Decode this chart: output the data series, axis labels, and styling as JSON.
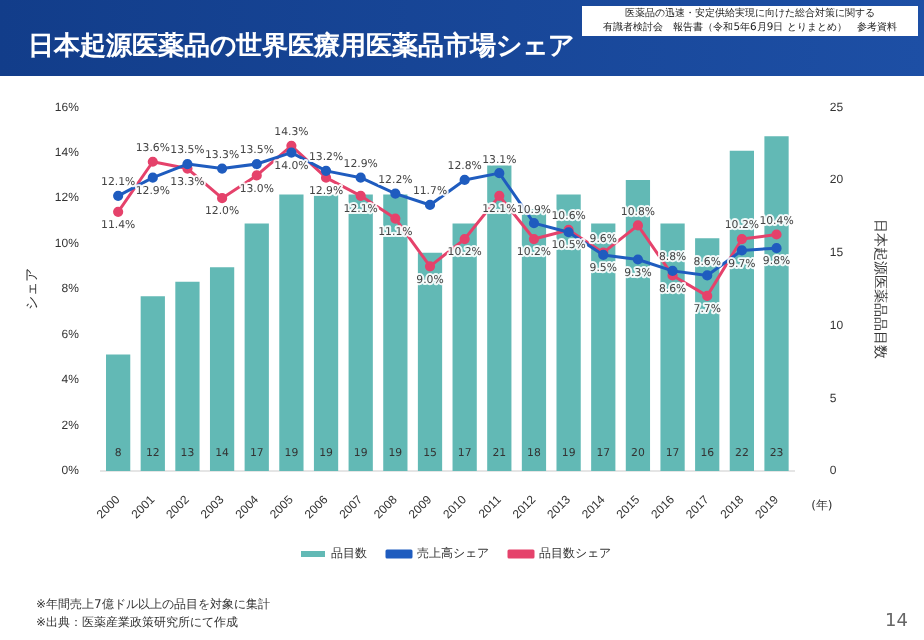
{
  "chart_data": {
    "type": "bar",
    "title": "日本起源医薬品の世界医療用医薬品市場シェア",
    "ylabel": "シェア",
    "y2label": "日本起源医薬品品目数",
    "categories": [
      "2000",
      "2001",
      "2002",
      "2003",
      "2004",
      "2005",
      "2006",
      "2007",
      "2008",
      "2009",
      "2010",
      "2011",
      "2012",
      "2013",
      "2014",
      "2015",
      "2016",
      "2017",
      "2018",
      "2019"
    ],
    "series": [
      {
        "name": "品目数",
        "axis": "y2",
        "color": "#62b9b5",
        "values": [
          8,
          12,
          13,
          14,
          17,
          19,
          19,
          19,
          19,
          15,
          17,
          21,
          18,
          19,
          17,
          20,
          17,
          16,
          22,
          23
        ],
        "value_labels": [
          "8",
          "12",
          "13",
          "14",
          "17",
          "19",
          "19",
          "19",
          "19",
          "15",
          "17",
          "21",
          "18",
          "19",
          "17",
          "20",
          "17",
          "16",
          "22",
          "23"
        ]
      },
      {
        "name": "売上高シェア",
        "type": "line",
        "color": "#1f5cbf",
        "values": [
          12.1,
          12.9,
          13.5,
          13.3,
          13.5,
          14.0,
          13.2,
          12.9,
          12.2,
          11.7,
          12.8,
          13.1,
          10.9,
          10.5,
          9.5,
          9.3,
          8.8,
          8.6,
          9.7,
          9.8
        ],
        "value_labels": [
          "12.1%",
          "12.9%",
          "13.5%",
          "13.3%",
          "13.5%",
          "14.0%",
          "13.2%",
          "12.9%",
          "12.2%",
          "11.7%",
          "12.8%",
          "13.1%",
          "10.9%",
          "10.5%",
          "9.5%",
          "9.3%",
          "8.8%",
          "8.6%",
          "9.7%",
          "9.8%"
        ]
      },
      {
        "name": "品目数シェア",
        "type": "line",
        "color": "#e5426b",
        "values": [
          11.4,
          13.6,
          13.3,
          12.0,
          13.0,
          14.3,
          12.9,
          12.1,
          11.1,
          9.0,
          10.2,
          12.1,
          10.2,
          10.6,
          9.6,
          10.8,
          8.6,
          7.7,
          10.2,
          10.4
        ],
        "value_labels": [
          "11.4%",
          "13.6%",
          "13.3%",
          "12.0%",
          "13.0%",
          "14.3%",
          "12.9%",
          "12.1%",
          "11.1%",
          "9.0%",
          "10.2%",
          "12.1%",
          "10.2%",
          "10.6%",
          "9.6%",
          "10.8%",
          "8.6%",
          "7.7%",
          "10.2%",
          "10.4%"
        ]
      }
    ],
    "ylim": [
      0,
      16
    ],
    "yticks": [
      {
        "value": 0,
        "label": "0%"
      },
      {
        "value": 2,
        "label": "2%"
      },
      {
        "value": 4,
        "label": "4%"
      },
      {
        "value": 6,
        "label": "6%"
      },
      {
        "value": 8,
        "label": "8%"
      },
      {
        "value": 10,
        "label": "10%"
      },
      {
        "value": 12,
        "label": "12%"
      },
      {
        "value": 14,
        "label": "14%"
      },
      {
        "value": 16,
        "label": "16%"
      }
    ],
    "y2lim": [
      0,
      25
    ],
    "y2ticks": [
      0,
      5,
      10,
      15,
      20,
      25
    ],
    "grid": false,
    "legend": "bottom",
    "marker": "circle",
    "annotations": [
      "医薬品の迅速・安定供給実現に向けた総合対策に関する",
      "有識者検討会　報告書（令和5年6月9日 とりまとめ）　参考資料",
      "(年)",
      "※年間売上7億ドル以上の品目を対象に集計",
      "※出典：医薬産業政策研究所にて作成",
      "14"
    ]
  }
}
